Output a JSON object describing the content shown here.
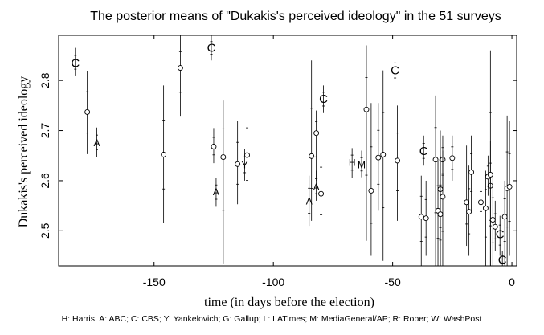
{
  "chart_data": {
    "type": "scatter",
    "title": "The posterior means of \"Dukakis's perceived ideology\" in the 51 surveys",
    "xlabel": "time (in days before the election)",
    "ylabel": "Dukakis's perceived ideology",
    "footnote": "H: Harris, A: ABC; C: CBS; Y: Yankelovich; G: Gallup; L: LATimes; M: MediaGeneral/AP; R: Roper; W: WashPost",
    "xlim": [
      -190,
      2
    ],
    "ylim": [
      2.43,
      2.89
    ],
    "xticks": [
      -150,
      -100,
      -50,
      0
    ],
    "xtick_labels": [
      "-150",
      "-100",
      "-50",
      "0"
    ],
    "yticks": [
      2.5,
      2.6,
      2.7,
      2.8
    ],
    "ytick_labels": [
      "2.5",
      "2.6",
      "2.7",
      "2.8"
    ],
    "grid": false,
    "points": [
      {
        "x": -183,
        "y": 2.835,
        "lo": 2.81,
        "hi": 2.865,
        "label": "C"
      },
      {
        "x": -178,
        "y": 2.737,
        "lo": 2.653,
        "hi": 2.818,
        "label": ""
      },
      {
        "x": -174,
        "y": 2.676,
        "lo": 2.648,
        "hi": 2.706,
        "label": "A"
      },
      {
        "x": -146,
        "y": 2.652,
        "lo": 2.515,
        "hi": 2.79,
        "label": ""
      },
      {
        "x": -139,
        "y": 2.825,
        "lo": 2.728,
        "hi": 2.89,
        "label": ""
      },
      {
        "x": -126,
        "y": 2.865,
        "lo": 2.84,
        "hi": 2.89,
        "label": "C"
      },
      {
        "x": -125,
        "y": 2.668,
        "lo": 2.635,
        "hi": 2.705,
        "label": ""
      },
      {
        "x": -124,
        "y": 2.578,
        "lo": 2.548,
        "hi": 2.605,
        "label": "A"
      },
      {
        "x": -121,
        "y": 2.647,
        "lo": 2.435,
        "hi": 2.76,
        "label": ""
      },
      {
        "x": -115,
        "y": 2.633,
        "lo": 2.553,
        "hi": 2.72,
        "label": ""
      },
      {
        "x": -112,
        "y": 2.632,
        "lo": 2.6,
        "hi": 2.663,
        "label": "Y"
      },
      {
        "x": -111,
        "y": 2.651,
        "lo": 2.55,
        "hi": 2.76,
        "label": ""
      },
      {
        "x": -85,
        "y": 2.56,
        "lo": 2.51,
        "hi": 2.61,
        "label": "A"
      },
      {
        "x": -84,
        "y": 2.649,
        "lo": 2.52,
        "hi": 2.84,
        "label": ""
      },
      {
        "x": -82,
        "y": 2.588,
        "lo": 2.56,
        "hi": 2.62,
        "label": "A"
      },
      {
        "x": -82,
        "y": 2.695,
        "lo": 2.6,
        "hi": 2.74,
        "label": ""
      },
      {
        "x": -80,
        "y": 2.574,
        "lo": 2.49,
        "hi": 2.68,
        "label": ""
      },
      {
        "x": -79,
        "y": 2.763,
        "lo": 2.735,
        "hi": 2.79,
        "label": "C"
      },
      {
        "x": -67,
        "y": 2.637,
        "lo": 2.605,
        "hi": 2.665,
        "label": "H"
      },
      {
        "x": -63,
        "y": 2.632,
        "lo": 2.607,
        "hi": 2.66,
        "label": "M"
      },
      {
        "x": -61,
        "y": 2.742,
        "lo": 2.48,
        "hi": 2.87,
        "label": ""
      },
      {
        "x": -59,
        "y": 2.58,
        "lo": 2.45,
        "hi": 2.755,
        "label": ""
      },
      {
        "x": -56,
        "y": 2.646,
        "lo": 2.54,
        "hi": 2.755,
        "label": ""
      },
      {
        "x": -54,
        "y": 2.652,
        "lo": 2.44,
        "hi": 2.82,
        "label": ""
      },
      {
        "x": -49,
        "y": 2.82,
        "lo": 2.79,
        "hi": 2.85,
        "label": "C"
      },
      {
        "x": -48,
        "y": 2.64,
        "lo": 2.52,
        "hi": 2.75,
        "label": ""
      },
      {
        "x": -38,
        "y": 2.528,
        "lo": 2.43,
        "hi": 2.61,
        "label": ""
      },
      {
        "x": -37,
        "y": 2.659,
        "lo": 2.63,
        "hi": 2.69,
        "label": "C"
      },
      {
        "x": -36,
        "y": 2.525,
        "lo": 2.45,
        "hi": 2.6,
        "label": ""
      },
      {
        "x": -32,
        "y": 2.642,
        "lo": 2.43,
        "hi": 2.77,
        "label": ""
      },
      {
        "x": -31,
        "y": 2.54,
        "lo": 2.43,
        "hi": 2.64,
        "label": ""
      },
      {
        "x": -30,
        "y": 2.583,
        "lo": 2.43,
        "hi": 2.7,
        "label": ""
      },
      {
        "x": -30,
        "y": 2.533,
        "lo": 2.43,
        "hi": 2.65,
        "label": ""
      },
      {
        "x": -29,
        "y": 2.642,
        "lo": 2.58,
        "hi": 2.69,
        "label": ""
      },
      {
        "x": -29,
        "y": 2.568,
        "lo": 2.43,
        "hi": 2.66,
        "label": ""
      },
      {
        "x": -25,
        "y": 2.645,
        "lo": 2.6,
        "hi": 2.69,
        "label": ""
      },
      {
        "x": -19,
        "y": 2.557,
        "lo": 2.47,
        "hi": 2.67,
        "label": ""
      },
      {
        "x": -18,
        "y": 2.538,
        "lo": 2.45,
        "hi": 2.63,
        "label": ""
      },
      {
        "x": -17,
        "y": 2.617,
        "lo": 2.54,
        "hi": 2.69,
        "label": ""
      },
      {
        "x": -13,
        "y": 2.557,
        "lo": 2.52,
        "hi": 2.6,
        "label": ""
      },
      {
        "x": -11,
        "y": 2.545,
        "lo": 2.43,
        "hi": 2.62,
        "label": ""
      },
      {
        "x": -10,
        "y": 2.608,
        "lo": 2.57,
        "hi": 2.65,
        "label": ""
      },
      {
        "x": -9,
        "y": 2.59,
        "lo": 2.43,
        "hi": 2.68,
        "label": ""
      },
      {
        "x": -9,
        "y": 2.612,
        "lo": 2.43,
        "hi": 2.86,
        "label": ""
      },
      {
        "x": -8,
        "y": 2.522,
        "lo": 2.43,
        "hi": 2.61,
        "label": ""
      },
      {
        "x": -7,
        "y": 2.508,
        "lo": 2.46,
        "hi": 2.56,
        "label": ""
      },
      {
        "x": -5,
        "y": 2.493,
        "lo": 2.45,
        "hi": 2.53,
        "label": "C"
      },
      {
        "x": -4,
        "y": 2.442,
        "lo": 2.43,
        "hi": 2.46,
        "label": "C"
      },
      {
        "x": -3,
        "y": 2.528,
        "lo": 2.43,
        "hi": 2.6,
        "label": ""
      },
      {
        "x": -2,
        "y": 2.585,
        "lo": 2.43,
        "hi": 2.73,
        "label": ""
      },
      {
        "x": -1,
        "y": 2.588,
        "lo": 2.45,
        "hi": 2.72,
        "label": ""
      }
    ]
  }
}
